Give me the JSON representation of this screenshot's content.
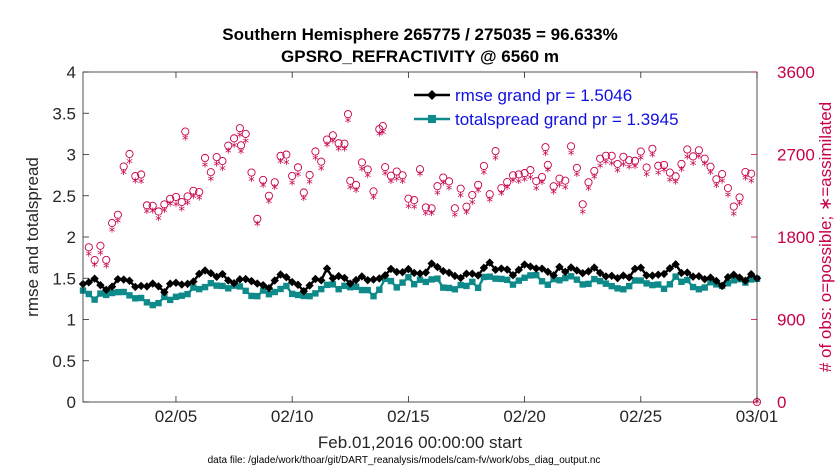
{
  "chart_data": {
    "type": "line",
    "title": "Southern Hemisphere 265775 / 275035 = 96.633%",
    "subtitle": "GPSRO_REFRACTIVITY @ 6560 m",
    "xlabel": "Feb.01,2016 00:00:00 start",
    "ylabel": "rmse and totalspread",
    "y2label": "# of obs: o=possible; ∗=assimilated",
    "footnote": "data file: /glade/work/thoar/git/DART_reanalysis/models/cam-fv/work/obs_diag_output.nc",
    "xlim": [
      1,
      30
    ],
    "ylim": [
      0,
      4
    ],
    "y2lim": [
      0,
      3600
    ],
    "x_ticks": [
      5,
      10,
      15,
      20,
      25,
      30
    ],
    "x_tick_labels": [
      "02/05",
      "02/10",
      "02/15",
      "02/20",
      "02/25",
      "03/01"
    ],
    "y_ticks": [
      0,
      0.5,
      1,
      1.5,
      2,
      2.5,
      3,
      3.5,
      4
    ],
    "y_tick_labels": [
      "0",
      "0.5",
      "1",
      "1.5",
      "2",
      "2.5",
      "3",
      "3.5",
      "4"
    ],
    "y2_ticks": [
      0,
      900,
      1800,
      2700,
      3600
    ],
    "y2_tick_labels": [
      "0",
      "900",
      "1800",
      "2700",
      "3600"
    ],
    "series": [
      {
        "name": "rmse",
        "legend": "rmse grand pr = 1.5046",
        "axis": "left",
        "color": "#000000",
        "marker": "diamond",
        "keypoints": [
          [
            1.0,
            1.41
          ],
          [
            1.5,
            1.45
          ],
          [
            2.0,
            1.4
          ],
          [
            2.5,
            1.46
          ],
          [
            3.0,
            1.43
          ],
          [
            3.5,
            1.37
          ],
          [
            4.0,
            1.4
          ],
          [
            4.5,
            1.38
          ],
          [
            5.0,
            1.42
          ],
          [
            5.5,
            1.45
          ],
          [
            6.0,
            1.52
          ],
          [
            6.5,
            1.58
          ],
          [
            7.0,
            1.55
          ],
          [
            7.5,
            1.48
          ],
          [
            8.0,
            1.45
          ],
          [
            8.5,
            1.4
          ],
          [
            9.0,
            1.42
          ],
          [
            9.5,
            1.55
          ],
          [
            10.0,
            1.42
          ],
          [
            10.5,
            1.37
          ],
          [
            11.0,
            1.45
          ],
          [
            11.5,
            1.58
          ],
          [
            12.0,
            1.5
          ],
          [
            12.5,
            1.46
          ],
          [
            13.0,
            1.5
          ],
          [
            13.5,
            1.45
          ],
          [
            14.0,
            1.58
          ],
          [
            14.5,
            1.55
          ],
          [
            15.0,
            1.62
          ],
          [
            15.5,
            1.58
          ],
          [
            16.0,
            1.65
          ],
          [
            16.5,
            1.55
          ],
          [
            17.0,
            1.5
          ],
          [
            17.5,
            1.58
          ],
          [
            18.0,
            1.55
          ],
          [
            18.5,
            1.68
          ],
          [
            19.0,
            1.62
          ],
          [
            19.5,
            1.58
          ],
          [
            20.0,
            1.7
          ],
          [
            20.5,
            1.62
          ],
          [
            21.0,
            1.55
          ],
          [
            21.5,
            1.62
          ],
          [
            22.0,
            1.6
          ],
          [
            22.5,
            1.55
          ],
          [
            23.0,
            1.6
          ],
          [
            23.5,
            1.56
          ],
          [
            24.0,
            1.52
          ],
          [
            24.5,
            1.55
          ],
          [
            25.0,
            1.58
          ],
          [
            25.5,
            1.5
          ],
          [
            26.0,
            1.55
          ],
          [
            26.5,
            1.62
          ],
          [
            27.0,
            1.58
          ],
          [
            27.5,
            1.5
          ],
          [
            28.0,
            1.52
          ],
          [
            28.5,
            1.45
          ],
          [
            29.0,
            1.55
          ],
          [
            29.5,
            1.52
          ],
          [
            30.0,
            1.53
          ]
        ],
        "noise": 0.05
      },
      {
        "name": "totalspread",
        "legend": "totalspread grand pr = 1.3945",
        "axis": "left",
        "color": "#0e8a8a",
        "marker": "square",
        "keypoints": [
          [
            1.0,
            1.32
          ],
          [
            1.5,
            1.28
          ],
          [
            2.0,
            1.3
          ],
          [
            2.5,
            1.35
          ],
          [
            3.0,
            1.3
          ],
          [
            3.5,
            1.22
          ],
          [
            4.0,
            1.2
          ],
          [
            4.5,
            1.25
          ],
          [
            5.0,
            1.3
          ],
          [
            5.5,
            1.33
          ],
          [
            6.0,
            1.4
          ],
          [
            6.5,
            1.45
          ],
          [
            7.0,
            1.42
          ],
          [
            7.5,
            1.38
          ],
          [
            8.0,
            1.35
          ],
          [
            8.5,
            1.3
          ],
          [
            9.0,
            1.32
          ],
          [
            9.5,
            1.4
          ],
          [
            10.0,
            1.33
          ],
          [
            10.5,
            1.28
          ],
          [
            11.0,
            1.36
          ],
          [
            11.5,
            1.45
          ],
          [
            12.0,
            1.4
          ],
          [
            12.5,
            1.35
          ],
          [
            13.0,
            1.38
          ],
          [
            13.5,
            1.32
          ],
          [
            14.0,
            1.45
          ],
          [
            14.5,
            1.4
          ],
          [
            15.0,
            1.48
          ],
          [
            15.5,
            1.45
          ],
          [
            16.0,
            1.52
          ],
          [
            16.5,
            1.4
          ],
          [
            17.0,
            1.38
          ],
          [
            17.5,
            1.45
          ],
          [
            18.0,
            1.42
          ],
          [
            18.5,
            1.55
          ],
          [
            19.0,
            1.5
          ],
          [
            19.5,
            1.45
          ],
          [
            20.0,
            1.55
          ],
          [
            20.5,
            1.5
          ],
          [
            21.0,
            1.45
          ],
          [
            21.5,
            1.5
          ],
          [
            22.0,
            1.48
          ],
          [
            22.5,
            1.42
          ],
          [
            23.0,
            1.45
          ],
          [
            23.5,
            1.42
          ],
          [
            24.0,
            1.4
          ],
          [
            24.5,
            1.42
          ],
          [
            25.0,
            1.45
          ],
          [
            25.5,
            1.38
          ],
          [
            26.0,
            1.4
          ],
          [
            26.5,
            1.48
          ],
          [
            27.0,
            1.45
          ],
          [
            27.5,
            1.4
          ],
          [
            28.0,
            1.42
          ],
          [
            28.5,
            1.38
          ],
          [
            29.0,
            1.45
          ],
          [
            29.5,
            1.45
          ],
          [
            30.0,
            1.47
          ]
        ],
        "noise": 0.045
      },
      {
        "name": "obs possible",
        "axis": "right",
        "color": "#c8004c",
        "marker": "circle",
        "keypoints": [
          [
            1.0,
            1900
          ],
          [
            1.5,
            1700
          ],
          [
            2.0,
            1650
          ],
          [
            2.5,
            2050
          ],
          [
            2.8,
            2650
          ],
          [
            3.3,
            2600
          ],
          [
            3.6,
            2280
          ],
          [
            4.2,
            2200
          ],
          [
            4.6,
            2250
          ],
          [
            5.0,
            2150
          ],
          [
            5.5,
            2400
          ],
          [
            6.0,
            2450
          ],
          [
            6.5,
            2650
          ],
          [
            7.0,
            2700
          ],
          [
            7.5,
            2850
          ],
          [
            8.0,
            2800
          ],
          [
            8.5,
            2150
          ],
          [
            9.0,
            2400
          ],
          [
            9.5,
            2600
          ],
          [
            10.0,
            2620
          ],
          [
            10.5,
            2300
          ],
          [
            11.0,
            2650
          ],
          [
            11.5,
            2750
          ],
          [
            12.0,
            2950
          ],
          [
            12.5,
            2450
          ],
          [
            13.0,
            2550
          ],
          [
            13.5,
            2300
          ],
          [
            13.8,
            2950
          ],
          [
            14.2,
            2500
          ],
          [
            14.5,
            2600
          ],
          [
            15.0,
            2150
          ],
          [
            15.5,
            2400
          ],
          [
            16.0,
            2100
          ],
          [
            16.5,
            2550
          ],
          [
            17.0,
            2200
          ],
          [
            17.5,
            2250
          ],
          [
            18.0,
            2500
          ],
          [
            18.5,
            2350
          ],
          [
            18.7,
            2650
          ],
          [
            19.0,
            2400
          ],
          [
            19.5,
            2350
          ],
          [
            20.0,
            2550
          ],
          [
            20.5,
            2350
          ],
          [
            21.0,
            2550
          ],
          [
            21.5,
            2450
          ],
          [
            22.0,
            2700
          ],
          [
            22.5,
            2250
          ],
          [
            23.0,
            2650
          ],
          [
            23.5,
            2700
          ],
          [
            24.0,
            2650
          ],
          [
            24.5,
            2700
          ],
          [
            25.0,
            2650
          ],
          [
            25.5,
            2600
          ],
          [
            26.0,
            2700
          ],
          [
            26.5,
            2550
          ],
          [
            27.0,
            2650
          ],
          [
            27.5,
            2600
          ],
          [
            28.0,
            2550
          ],
          [
            28.5,
            2450
          ],
          [
            29.0,
            2300
          ],
          [
            29.5,
            2400
          ],
          [
            30.0,
            2350
          ]
        ],
        "extras": [
          [
            12.4,
            3140
          ],
          [
            13.9,
            3010
          ],
          [
            7.8,
            2800
          ],
          [
            20.9,
            2780
          ],
          [
            5.4,
            2950
          ]
        ],
        "noise": 170
      },
      {
        "name": "obs assimilated",
        "axis": "right",
        "color": "#c8004c",
        "marker": "asterisk",
        "offset": -75
      }
    ]
  }
}
